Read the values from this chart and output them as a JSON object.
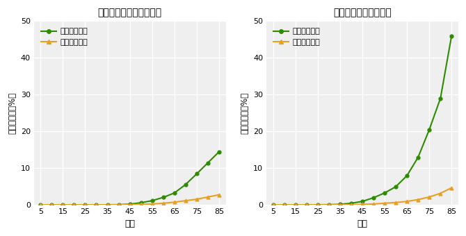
{
  "ages": [
    5,
    10,
    15,
    20,
    25,
    30,
    35,
    40,
    45,
    50,
    55,
    60,
    65,
    70,
    75,
    80,
    85
  ],
  "non_carrier_pos": [
    0.05,
    0.05,
    0.05,
    0.05,
    0.05,
    0.05,
    0.08,
    0.12,
    0.25,
    0.65,
    1.2,
    2.1,
    3.3,
    5.6,
    8.5,
    11.5,
    14.5
  ],
  "non_carrier_neg": [
    0.05,
    0.05,
    0.05,
    0.05,
    0.05,
    0.05,
    0.05,
    0.08,
    0.12,
    0.2,
    0.3,
    0.5,
    0.8,
    1.2,
    1.6,
    2.2,
    2.8
  ],
  "carrier_pos": [
    0.05,
    0.05,
    0.05,
    0.05,
    0.08,
    0.12,
    0.2,
    0.5,
    1.0,
    2.0,
    3.3,
    5.0,
    8.0,
    13.0,
    20.5,
    29.0,
    46.0
  ],
  "carrier_neg": [
    0.05,
    0.05,
    0.05,
    0.05,
    0.05,
    0.05,
    0.08,
    0.12,
    0.2,
    0.3,
    0.5,
    0.7,
    1.0,
    1.5,
    2.2,
    3.2,
    4.7
  ],
  "title_left": "病的バリアント非保持者",
  "title_right": "病的バリアント保持者",
  "ylabel": "累積リスク（%）",
  "xlabel": "年齢",
  "legend_positive": "ピロリ菌陽性",
  "legend_negative": "ピロリ菌陰性",
  "color_positive": "#2e8b00",
  "color_negative": "#e8a020",
  "ylim": [
    0,
    50
  ],
  "yticks": [
    0,
    10,
    20,
    30,
    40,
    50
  ],
  "xticks": [
    5,
    15,
    25,
    35,
    45,
    55,
    65,
    75,
    85
  ],
  "plot_bg_color": "#efefef"
}
